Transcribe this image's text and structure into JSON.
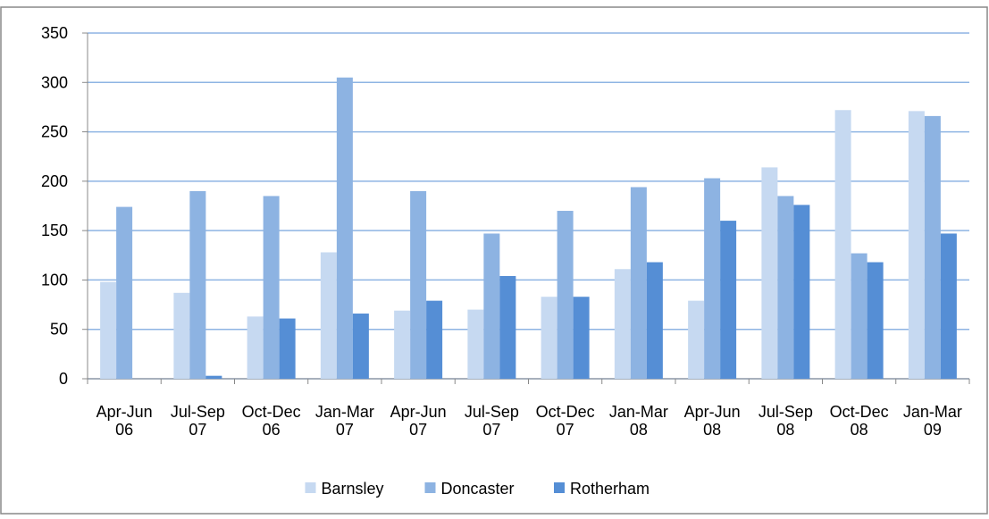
{
  "chart_data": {
    "type": "bar",
    "categories": [
      "Apr-Jun\n06",
      "Jul-Sep\n07",
      "Oct-Dec\n06",
      "Jan-Mar\n07",
      "Apr-Jun\n07",
      "Jul-Sep\n07",
      "Oct-Dec\n07",
      "Jan-Mar\n08",
      "Apr-Jun\n08",
      "Jul-Sep\n08",
      "Oct-Dec\n08",
      "Jan-Mar\n09"
    ],
    "series": [
      {
        "name": "Barnsley",
        "color": "#c6d9f1",
        "values": [
          98,
          87,
          63,
          128,
          69,
          70,
          83,
          111,
          79,
          214,
          272,
          271
        ]
      },
      {
        "name": "Doncaster",
        "color": "#8db3e2",
        "values": [
          174,
          190,
          185,
          305,
          190,
          147,
          170,
          194,
          203,
          185,
          127,
          266
        ]
      },
      {
        "name": "Rotherham",
        "color": "#558ed5",
        "values": [
          0,
          3,
          61,
          66,
          79,
          104,
          83,
          118,
          160,
          176,
          118,
          147
        ]
      }
    ],
    "ylim": [
      0,
      350
    ],
    "yticks": [
      0,
      50,
      100,
      150,
      200,
      250,
      300,
      350
    ],
    "grid": true,
    "legend": "bottom"
  }
}
